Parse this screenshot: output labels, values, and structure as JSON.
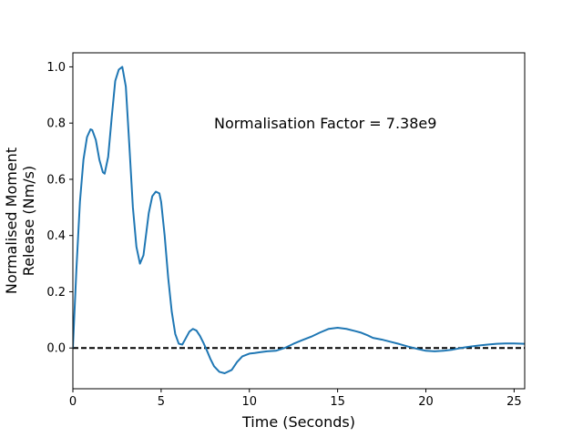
{
  "chart_data": {
    "type": "line",
    "title": "",
    "xlabel": "Time (Seconds)",
    "ylabel_lines": [
      "Normalised Moment",
      "Release (Nm/s)"
    ],
    "annotation": "Normalisation Factor = 7.38e9",
    "annotation_at": {
      "x": 8.0,
      "y": 0.8
    },
    "xlim": [
      0,
      25.6
    ],
    "ylim": [
      -0.145,
      1.05
    ],
    "xticks": [
      0,
      5,
      10,
      15,
      20,
      25
    ],
    "yticks": [
      0.0,
      0.2,
      0.4,
      0.6,
      0.8,
      1.0
    ],
    "xtick_labels": [
      "0",
      "5",
      "10",
      "15",
      "20",
      "25"
    ],
    "ytick_labels": [
      "0.0",
      "0.2",
      "0.4",
      "0.6",
      "0.8",
      "1.0"
    ],
    "line_color": "#1f77b4",
    "reference_line": {
      "y": 0.0,
      "style": "dashed",
      "color": "#000000"
    },
    "series": [
      {
        "x": [
          0,
          0.2,
          0.4,
          0.6,
          0.8,
          1.0,
          1.1,
          1.3,
          1.5,
          1.7,
          1.8,
          2.0,
          2.2,
          2.4,
          2.6,
          2.8,
          3.0,
          3.2,
          3.4,
          3.6,
          3.8,
          4.0,
          4.1,
          4.3,
          4.5,
          4.7,
          4.9,
          5.0,
          5.2,
          5.4,
          5.6,
          5.8,
          6.0,
          6.2,
          6.4,
          6.6,
          6.8,
          7.0,
          7.2,
          7.4,
          7.6,
          7.8,
          8.0,
          8.3,
          8.6,
          9.0,
          9.3,
          9.6,
          10.0,
          10.3,
          10.6,
          11.0,
          11.5,
          12.0,
          12.5,
          13.0,
          13.5,
          14.0,
          14.5,
          15.0,
          15.5,
          16.0,
          16.3,
          16.7,
          17.0,
          17.5,
          18.0,
          18.5,
          19.0,
          19.5,
          20.0,
          20.5,
          21.0,
          21.5,
          22.0,
          22.5,
          23.0,
          23.5,
          24.0,
          24.5,
          25.0,
          25.6
        ],
        "y": [
          0.0,
          0.28,
          0.52,
          0.67,
          0.75,
          0.778,
          0.775,
          0.74,
          0.67,
          0.625,
          0.62,
          0.68,
          0.82,
          0.95,
          0.99,
          1.0,
          0.93,
          0.72,
          0.5,
          0.36,
          0.3,
          0.33,
          0.38,
          0.48,
          0.54,
          0.556,
          0.55,
          0.52,
          0.4,
          0.25,
          0.13,
          0.05,
          0.015,
          0.012,
          0.035,
          0.058,
          0.068,
          0.062,
          0.043,
          0.018,
          -0.01,
          -0.04,
          -0.065,
          -0.085,
          -0.09,
          -0.078,
          -0.05,
          -0.03,
          -0.02,
          -0.018,
          -0.015,
          -0.012,
          -0.01,
          0.0,
          0.015,
          0.028,
          0.04,
          0.055,
          0.068,
          0.072,
          0.068,
          0.06,
          0.055,
          0.045,
          0.036,
          0.03,
          0.022,
          0.014,
          0.005,
          -0.003,
          -0.01,
          -0.012,
          -0.01,
          -0.006,
          0.0,
          0.005,
          0.009,
          0.012,
          0.015,
          0.016,
          0.016,
          0.015
        ]
      }
    ]
  }
}
